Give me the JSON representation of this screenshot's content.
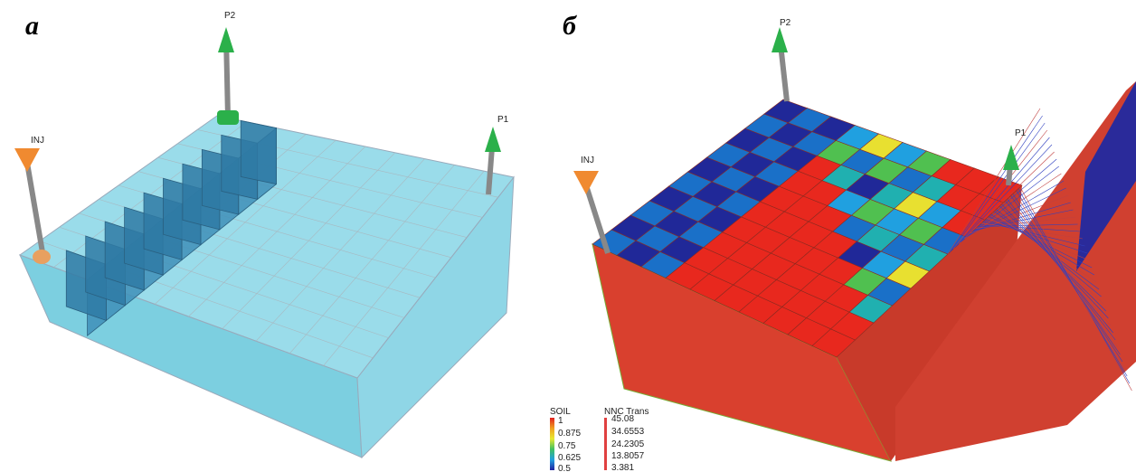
{
  "panel_a": {
    "label": "а",
    "wells": [
      "P2",
      "INJ",
      "P1"
    ]
  },
  "panel_b": {
    "label": "б",
    "wells": [
      "P2",
      "INJ",
      "P1"
    ],
    "legend": {
      "soil_title": "SOIL",
      "soil_ticks": [
        "1",
        "0.875",
        "0.75",
        "0.625",
        "0.5"
      ],
      "nnc_title": "NNC Trans",
      "nnc_ticks": [
        "45.08",
        "34.6553",
        "24.2305",
        "13.8057",
        "3.381"
      ]
    }
  }
}
